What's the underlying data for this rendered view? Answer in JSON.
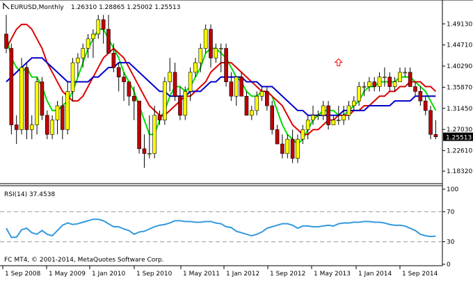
{
  "header": {
    "symbol": "EURUSD,Monthly",
    "ohlc": "1.26310 1.28865 1.25002 1.25513"
  },
  "indicator": {
    "label": "RSI(14) 37.4538",
    "levels": [
      70,
      30
    ],
    "scale_labels": [
      "100",
      "70",
      "30",
      "0"
    ]
  },
  "footer": {
    "copyright": "FC MT4, © 2001-2014, MetaQuotes Software Corp."
  },
  "colors": {
    "bull": "#ffff00",
    "bear": "#c00000",
    "wick": "#000000",
    "ma_fast": "#00dd00",
    "ma_mid": "#dd0000",
    "ma_slow": "#0000cc",
    "rsi": "#3399dd",
    "arrow": "#ff0000",
    "grid": "#999999"
  },
  "icons": {
    "arrow": "up-arrow-icon"
  },
  "chart_data": [
    {
      "type": "candlestick",
      "title": "EURUSD,Monthly",
      "y_ticks": [
        "1.49130",
        "1.44710",
        "1.40290",
        "1.35870",
        "1.31450",
        "1.27030",
        "1.22610",
        "1.18320"
      ],
      "ylim": [
        1.16,
        1.515
      ],
      "x_ticks": [
        "1 Sep 2008",
        "1 May 2009",
        "1 Jan 2010",
        "1 Sep 2010",
        "1 May 2011",
        "1 Jan 2012",
        "1 Sep 2012",
        "1 May 2013",
        "1 Jan 2014",
        "1 Sep 2014"
      ],
      "current_price": "1.25513",
      "candles": [
        {
          "o": 1.47,
          "h": 1.51,
          "l": 1.43,
          "c": 1.44
        },
        {
          "o": 1.44,
          "h": 1.45,
          "l": 1.26,
          "c": 1.28
        },
        {
          "o": 1.28,
          "h": 1.3,
          "l": 1.24,
          "c": 1.27
        },
        {
          "o": 1.27,
          "h": 1.42,
          "l": 1.26,
          "c": 1.4
        },
        {
          "o": 1.4,
          "h": 1.41,
          "l": 1.25,
          "c": 1.27
        },
        {
          "o": 1.27,
          "h": 1.3,
          "l": 1.25,
          "c": 1.28
        },
        {
          "o": 1.28,
          "h": 1.38,
          "l": 1.26,
          "c": 1.37
        },
        {
          "o": 1.37,
          "h": 1.38,
          "l": 1.29,
          "c": 1.3
        },
        {
          "o": 1.3,
          "h": 1.31,
          "l": 1.25,
          "c": 1.26
        },
        {
          "o": 1.26,
          "h": 1.3,
          "l": 1.25,
          "c": 1.29
        },
        {
          "o": 1.29,
          "h": 1.33,
          "l": 1.26,
          "c": 1.32
        },
        {
          "o": 1.32,
          "h": 1.34,
          "l": 1.25,
          "c": 1.27
        },
        {
          "o": 1.27,
          "h": 1.37,
          "l": 1.26,
          "c": 1.35
        },
        {
          "o": 1.35,
          "h": 1.42,
          "l": 1.33,
          "c": 1.41
        },
        {
          "o": 1.41,
          "h": 1.43,
          "l": 1.38,
          "c": 1.42
        },
        {
          "o": 1.42,
          "h": 1.45,
          "l": 1.4,
          "c": 1.44
        },
        {
          "o": 1.44,
          "h": 1.47,
          "l": 1.42,
          "c": 1.46
        },
        {
          "o": 1.46,
          "h": 1.48,
          "l": 1.42,
          "c": 1.47
        },
        {
          "o": 1.47,
          "h": 1.51,
          "l": 1.46,
          "c": 1.5
        },
        {
          "o": 1.5,
          "h": 1.51,
          "l": 1.45,
          "c": 1.48
        },
        {
          "o": 1.48,
          "h": 1.51,
          "l": 1.43,
          "c": 1.43
        },
        {
          "o": 1.43,
          "h": 1.45,
          "l": 1.39,
          "c": 1.4
        },
        {
          "o": 1.4,
          "h": 1.41,
          "l": 1.35,
          "c": 1.38
        },
        {
          "o": 1.38,
          "h": 1.39,
          "l": 1.33,
          "c": 1.37
        },
        {
          "o": 1.37,
          "h": 1.37,
          "l": 1.32,
          "c": 1.34
        },
        {
          "o": 1.34,
          "h": 1.36,
          "l": 1.29,
          "c": 1.33
        },
        {
          "o": 1.33,
          "h": 1.33,
          "l": 1.22,
          "c": 1.23
        },
        {
          "o": 1.23,
          "h": 1.26,
          "l": 1.19,
          "c": 1.22
        },
        {
          "o": 1.22,
          "h": 1.3,
          "l": 1.21,
          "c": 1.22
        },
        {
          "o": 1.22,
          "h": 1.32,
          "l": 1.21,
          "c": 1.3
        },
        {
          "o": 1.3,
          "h": 1.31,
          "l": 1.28,
          "c": 1.29
        },
        {
          "o": 1.29,
          "h": 1.38,
          "l": 1.28,
          "c": 1.37
        },
        {
          "o": 1.37,
          "h": 1.42,
          "l": 1.35,
          "c": 1.39
        },
        {
          "o": 1.39,
          "h": 1.41,
          "l": 1.33,
          "c": 1.34
        },
        {
          "o": 1.34,
          "h": 1.36,
          "l": 1.29,
          "c": 1.3
        },
        {
          "o": 1.3,
          "h": 1.36,
          "l": 1.29,
          "c": 1.35
        },
        {
          "o": 1.35,
          "h": 1.4,
          "l": 1.33,
          "c": 1.39
        },
        {
          "o": 1.39,
          "h": 1.42,
          "l": 1.38,
          "c": 1.41
        },
        {
          "o": 1.41,
          "h": 1.45,
          "l": 1.39,
          "c": 1.44
        },
        {
          "o": 1.44,
          "h": 1.49,
          "l": 1.43,
          "c": 1.48
        },
        {
          "o": 1.48,
          "h": 1.49,
          "l": 1.4,
          "c": 1.42
        },
        {
          "o": 1.42,
          "h": 1.45,
          "l": 1.41,
          "c": 1.44
        },
        {
          "o": 1.44,
          "h": 1.45,
          "l": 1.39,
          "c": 1.44
        },
        {
          "o": 1.44,
          "h": 1.45,
          "l": 1.36,
          "c": 1.37
        },
        {
          "o": 1.37,
          "h": 1.39,
          "l": 1.33,
          "c": 1.34
        },
        {
          "o": 1.34,
          "h": 1.38,
          "l": 1.32,
          "c": 1.38
        },
        {
          "o": 1.38,
          "h": 1.39,
          "l": 1.34,
          "c": 1.34
        },
        {
          "o": 1.34,
          "h": 1.35,
          "l": 1.3,
          "c": 1.3
        },
        {
          "o": 1.3,
          "h": 1.32,
          "l": 1.29,
          "c": 1.31
        },
        {
          "o": 1.31,
          "h": 1.35,
          "l": 1.3,
          "c": 1.34
        },
        {
          "o": 1.34,
          "h": 1.36,
          "l": 1.33,
          "c": 1.35
        },
        {
          "o": 1.35,
          "h": 1.36,
          "l": 1.31,
          "c": 1.32
        },
        {
          "o": 1.32,
          "h": 1.33,
          "l": 1.26,
          "c": 1.27
        },
        {
          "o": 1.27,
          "h": 1.28,
          "l": 1.24,
          "c": 1.24
        },
        {
          "o": 1.24,
          "h": 1.26,
          "l": 1.21,
          "c": 1.22
        },
        {
          "o": 1.22,
          "h": 1.26,
          "l": 1.21,
          "c": 1.25
        },
        {
          "o": 1.25,
          "h": 1.27,
          "l": 1.2,
          "c": 1.21
        },
        {
          "o": 1.21,
          "h": 1.26,
          "l": 1.2,
          "c": 1.25
        },
        {
          "o": 1.25,
          "h": 1.28,
          "l": 1.24,
          "c": 1.27
        },
        {
          "o": 1.27,
          "h": 1.3,
          "l": 1.25,
          "c": 1.29
        },
        {
          "o": 1.29,
          "h": 1.32,
          "l": 1.28,
          "c": 1.3
        },
        {
          "o": 1.3,
          "h": 1.31,
          "l": 1.29,
          "c": 1.3
        },
        {
          "o": 1.3,
          "h": 1.33,
          "l": 1.29,
          "c": 1.32
        },
        {
          "o": 1.32,
          "h": 1.33,
          "l": 1.27,
          "c": 1.28
        },
        {
          "o": 1.28,
          "h": 1.3,
          "l": 1.28,
          "c": 1.29
        },
        {
          "o": 1.29,
          "h": 1.32,
          "l": 1.28,
          "c": 1.29
        },
        {
          "o": 1.29,
          "h": 1.32,
          "l": 1.28,
          "c": 1.3
        },
        {
          "o": 1.3,
          "h": 1.33,
          "l": 1.29,
          "c": 1.32
        },
        {
          "o": 1.32,
          "h": 1.34,
          "l": 1.31,
          "c": 1.33
        },
        {
          "o": 1.33,
          "h": 1.37,
          "l": 1.32,
          "c": 1.36
        },
        {
          "o": 1.36,
          "h": 1.37,
          "l": 1.34,
          "c": 1.36
        },
        {
          "o": 1.36,
          "h": 1.38,
          "l": 1.35,
          "c": 1.37
        },
        {
          "o": 1.37,
          "h": 1.38,
          "l": 1.35,
          "c": 1.36
        },
        {
          "o": 1.36,
          "h": 1.39,
          "l": 1.35,
          "c": 1.38
        },
        {
          "o": 1.38,
          "h": 1.4,
          "l": 1.36,
          "c": 1.38
        },
        {
          "o": 1.38,
          "h": 1.39,
          "l": 1.35,
          "c": 1.36
        },
        {
          "o": 1.36,
          "h": 1.38,
          "l": 1.35,
          "c": 1.37
        },
        {
          "o": 1.37,
          "h": 1.4,
          "l": 1.37,
          "c": 1.39
        },
        {
          "o": 1.39,
          "h": 1.4,
          "l": 1.38,
          "c": 1.39
        },
        {
          "o": 1.39,
          "h": 1.4,
          "l": 1.36,
          "c": 1.36
        },
        {
          "o": 1.36,
          "h": 1.37,
          "l": 1.34,
          "c": 1.35
        },
        {
          "o": 1.35,
          "h": 1.36,
          "l": 1.32,
          "c": 1.33
        },
        {
          "o": 1.33,
          "h": 1.34,
          "l": 1.3,
          "c": 1.31
        },
        {
          "o": 1.31,
          "h": 1.32,
          "l": 1.25,
          "c": 1.26
        },
        {
          "o": 1.26,
          "h": 1.29,
          "l": 1.25,
          "c": 1.255
        }
      ],
      "series": [
        {
          "values": [
            1.47,
            1.42,
            1.4,
            1.39,
            1.4,
            1.38,
            1.38,
            1.36,
            1.33,
            1.31,
            1.31,
            1.32,
            1.33,
            1.35,
            1.38,
            1.41,
            1.44,
            1.46,
            1.48,
            1.48,
            1.46,
            1.44,
            1.42,
            1.39,
            1.37,
            1.35,
            1.32,
            1.29,
            1.26,
            1.26,
            1.29,
            1.31,
            1.34,
            1.36,
            1.36,
            1.35,
            1.36,
            1.38,
            1.4,
            1.43,
            1.44,
            1.44,
            1.43,
            1.42,
            1.4,
            1.38,
            1.37,
            1.35,
            1.34,
            1.34,
            1.35,
            1.35,
            1.34,
            1.31,
            1.28,
            1.26,
            1.25,
            1.24,
            1.25,
            1.27,
            1.29,
            1.3,
            1.31,
            1.31,
            1.31,
            1.3,
            1.3,
            1.31,
            1.32,
            1.33,
            1.35,
            1.36,
            1.36,
            1.37,
            1.37,
            1.37,
            1.37,
            1.38,
            1.38,
            1.38,
            1.37,
            1.36,
            1.35,
            1.33,
            1.31
          ]
        },
        {
          "values": [
            1.44,
            1.46,
            1.48,
            1.49,
            1.49,
            1.48,
            1.46,
            1.44,
            1.41,
            1.39,
            1.37,
            1.35,
            1.34,
            1.33,
            1.33,
            1.34,
            1.36,
            1.38,
            1.4,
            1.42,
            1.43,
            1.44,
            1.43,
            1.42,
            1.4,
            1.38,
            1.36,
            1.34,
            1.32,
            1.31,
            1.3,
            1.3,
            1.31,
            1.32,
            1.33,
            1.34,
            1.34,
            1.35,
            1.36,
            1.37,
            1.39,
            1.4,
            1.41,
            1.41,
            1.41,
            1.4,
            1.39,
            1.38,
            1.37,
            1.36,
            1.35,
            1.35,
            1.34,
            1.33,
            1.32,
            1.3,
            1.28,
            1.27,
            1.26,
            1.26,
            1.27,
            1.27,
            1.28,
            1.29,
            1.29,
            1.3,
            1.3,
            1.3,
            1.31,
            1.31,
            1.32,
            1.32,
            1.33,
            1.34,
            1.34,
            1.35,
            1.35,
            1.36,
            1.36,
            1.37,
            1.37,
            1.37,
            1.36,
            1.36,
            1.35
          ]
        },
        {
          "values": [
            1.37,
            1.38,
            1.39,
            1.4,
            1.41,
            1.42,
            1.42,
            1.42,
            1.41,
            1.4,
            1.39,
            1.38,
            1.37,
            1.37,
            1.37,
            1.37,
            1.37,
            1.38,
            1.38,
            1.39,
            1.4,
            1.4,
            1.41,
            1.41,
            1.41,
            1.4,
            1.39,
            1.38,
            1.37,
            1.36,
            1.35,
            1.35,
            1.34,
            1.34,
            1.34,
            1.34,
            1.35,
            1.35,
            1.35,
            1.36,
            1.37,
            1.37,
            1.38,
            1.38,
            1.38,
            1.38,
            1.38,
            1.37,
            1.37,
            1.37,
            1.36,
            1.36,
            1.36,
            1.35,
            1.34,
            1.33,
            1.32,
            1.31,
            1.31,
            1.3,
            1.3,
            1.3,
            1.3,
            1.3,
            1.3,
            1.3,
            1.31,
            1.31,
            1.31,
            1.31,
            1.31,
            1.32,
            1.32,
            1.32,
            1.32,
            1.32,
            1.33,
            1.33,
            1.33,
            1.33,
            1.34,
            1.34,
            1.34,
            1.34,
            1.34
          ]
        }
      ],
      "marker": {
        "type": "up-arrow",
        "index": 65,
        "price": 1.405
      }
    },
    {
      "type": "line",
      "title": "RSI(14) 37.4538",
      "ylim": [
        0,
        100
      ],
      "y_ticks": [
        100,
        70,
        30,
        0
      ],
      "series": [
        {
          "values": [
            48,
            36,
            36,
            46,
            48,
            42,
            40,
            45,
            40,
            38,
            45,
            52,
            55,
            53,
            54,
            56,
            58,
            60,
            60,
            58,
            54,
            50,
            50,
            47,
            45,
            40,
            43,
            44,
            47,
            50,
            52,
            53,
            55,
            58,
            58,
            57,
            57,
            56,
            56,
            57,
            57,
            55,
            54,
            50,
            49,
            44,
            42,
            40,
            38,
            40,
            43,
            48,
            50,
            52,
            54,
            54,
            52,
            48,
            51,
            51,
            50,
            50,
            51,
            52,
            51,
            54,
            55,
            55,
            56,
            56,
            57,
            57,
            56,
            56,
            55,
            53,
            52,
            52,
            51,
            48,
            45,
            40,
            38,
            37,
            37.4538
          ]
        }
      ]
    }
  ]
}
